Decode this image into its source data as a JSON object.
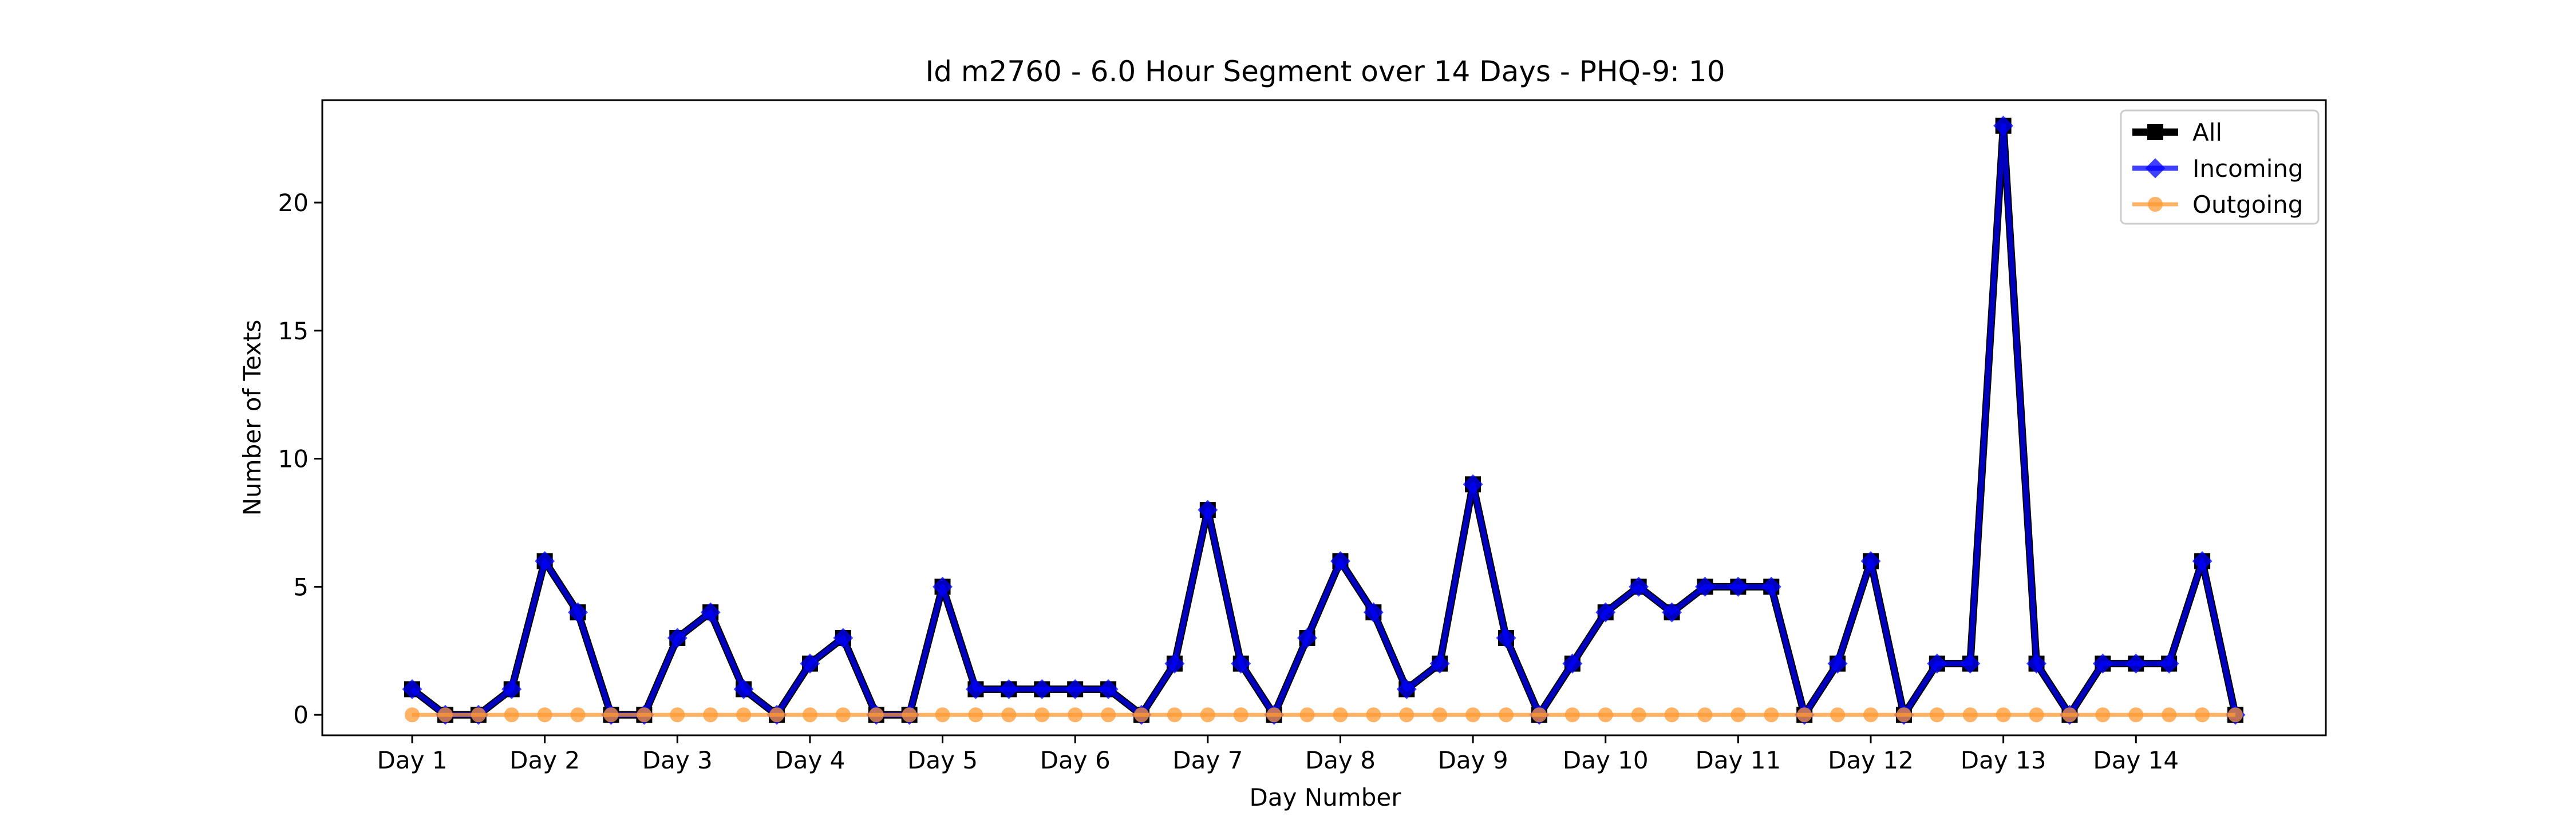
{
  "chart_data": {
    "type": "line",
    "title": "Id m2760 - 6.0 Hour Segment over 14 Days - PHQ-9: 10",
    "xlabel": "Day Number",
    "ylabel": "Number of Texts",
    "x_tick_labels": [
      "Day 1",
      "Day 2",
      "Day 3",
      "Day 4",
      "Day 5",
      "Day 6",
      "Day 7",
      "Day 8",
      "Day 9",
      "Day 10",
      "Day 11",
      "Day 12",
      "Day 13",
      "Day 14"
    ],
    "y_ticks": [
      0,
      5,
      10,
      15,
      20
    ],
    "ylim": [
      -0.8,
      24
    ],
    "grid": false,
    "legend_position": "top-right",
    "series": [
      {
        "name": "All",
        "color": "#000000",
        "marker": "square",
        "values": [
          1,
          0,
          0,
          1,
          6,
          4,
          0,
          0,
          3,
          4,
          1,
          0,
          2,
          3,
          0,
          0,
          5,
          1,
          1,
          1,
          1,
          1,
          0,
          2,
          8,
          2,
          0,
          3,
          6,
          4,
          1,
          2,
          9,
          3,
          0,
          2,
          4,
          5,
          4,
          5,
          5,
          5,
          0,
          2,
          6,
          0,
          2,
          2,
          23,
          2,
          0,
          2,
          2,
          2,
          6,
          0
        ]
      },
      {
        "name": "Incoming",
        "color": "#0000ff",
        "marker": "diamond",
        "values": [
          1,
          0,
          0,
          1,
          6,
          4,
          0,
          0,
          3,
          4,
          1,
          0,
          2,
          3,
          0,
          0,
          5,
          1,
          1,
          1,
          1,
          1,
          0,
          2,
          8,
          2,
          0,
          3,
          6,
          4,
          1,
          2,
          9,
          3,
          0,
          2,
          4,
          5,
          4,
          5,
          5,
          5,
          0,
          2,
          6,
          0,
          2,
          2,
          23,
          2,
          0,
          2,
          2,
          2,
          6,
          0
        ]
      },
      {
        "name": "Outgoing",
        "color": "#ff9933",
        "marker": "circle",
        "values": [
          0,
          0,
          0,
          0,
          0,
          0,
          0,
          0,
          0,
          0,
          0,
          0,
          0,
          0,
          0,
          0,
          0,
          0,
          0,
          0,
          0,
          0,
          0,
          0,
          0,
          0,
          0,
          0,
          0,
          0,
          0,
          0,
          0,
          0,
          0,
          0,
          0,
          0,
          0,
          0,
          0,
          0,
          0,
          0,
          0,
          0,
          0,
          0,
          0,
          0,
          0,
          0,
          0,
          0,
          0,
          0
        ]
      }
    ]
  }
}
